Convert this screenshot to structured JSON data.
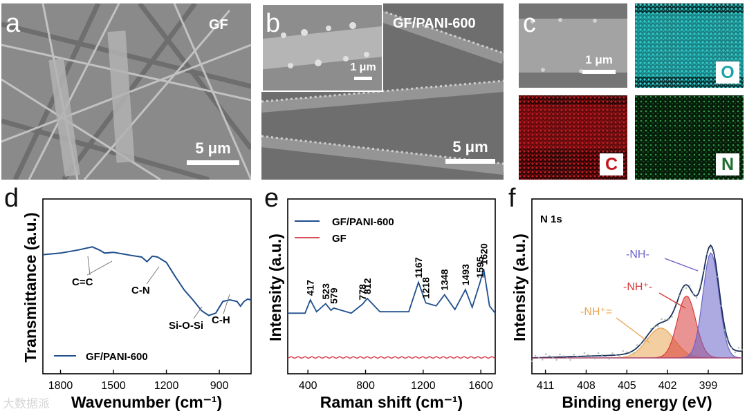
{
  "colors": {
    "pani": "#1f4e8c",
    "gf": "#d94a5a",
    "nh_peak": "#6a63c8",
    "nhp_peak": "#d93b3b",
    "nhpe_peak": "#e8a552",
    "map_o": "#29bfc2",
    "map_c": "#c3161c",
    "map_n": "#2f9a47"
  },
  "panels": {
    "a": {
      "label": "a",
      "title": "GF",
      "scale": "5 μm"
    },
    "b": {
      "label": "b",
      "title": "GF/PANI-600",
      "scale": "5 μm",
      "inset_scale": "1 μm"
    },
    "c": {
      "label": "c",
      "scale": "1 μm",
      "maps": {
        "o": "O",
        "c": "C",
        "n": "N"
      }
    }
  },
  "chart_data": [
    {
      "panel": "d",
      "type": "line",
      "xlabel": "Wavenumber (cm⁻¹)",
      "ylabel": "Transmittance (a.u.)",
      "xlim": [
        1900,
        720
      ],
      "x_reversed": true,
      "x_ticks": [
        1800,
        1500,
        1200,
        900
      ],
      "y_units": "arbitrary",
      "series": [
        {
          "name": "GF/PANI-600",
          "x": [
            1900,
            1800,
            1700,
            1620,
            1580,
            1550,
            1500,
            1450,
            1400,
            1340,
            1310,
            1280,
            1250,
            1200,
            1150,
            1100,
            1050,
            1000,
            960,
            920,
            880,
            840,
            800,
            780,
            760,
            740,
            720
          ],
          "y": [
            0.0,
            0.02,
            0.06,
            0.1,
            0.06,
            0.02,
            0.03,
            0.01,
            -0.01,
            -0.03,
            -0.09,
            -0.02,
            -0.03,
            -0.1,
            -0.28,
            -0.45,
            -0.58,
            -0.72,
            -0.78,
            -0.75,
            -0.6,
            -0.58,
            -0.6,
            -0.66,
            -0.6,
            -0.57,
            -0.58
          ]
        }
      ],
      "annotations": [
        "C=C",
        "C-N",
        "Si-O-Si",
        "C-H"
      ]
    },
    {
      "panel": "e",
      "type": "line",
      "xlabel": "Raman shift (cm⁻¹)",
      "ylabel": "Intensity (a.u.)",
      "xlim": [
        260,
        1700
      ],
      "x_ticks": [
        400,
        800,
        1200,
        1600
      ],
      "y_units": "arbitrary",
      "series": [
        {
          "name": "GF/PANI-600",
          "x": [
            260,
            380,
            417,
            460,
            523,
            560,
            579,
            700,
            778,
            812,
            900,
            1100,
            1167,
            1218,
            1290,
            1348,
            1420,
            1493,
            1540,
            1595,
            1620,
            1660,
            1700
          ],
          "y": [
            0.0,
            0.0,
            0.18,
            0.02,
            0.13,
            0.04,
            0.07,
            0.0,
            0.12,
            0.2,
            0.02,
            0.02,
            0.42,
            0.14,
            0.1,
            0.25,
            0.05,
            0.32,
            0.08,
            0.42,
            0.6,
            0.1,
            0.0
          ]
        },
        {
          "name": "GF",
          "x": [
            260,
            1700
          ],
          "y": [
            -0.6,
            -0.6
          ]
        }
      ],
      "peak_labels": [
        "417",
        "523",
        "579",
        "778",
        "812",
        "1167",
        "1218",
        "1348",
        "1493",
        "1595",
        "1620"
      ]
    },
    {
      "panel": "f",
      "type": "line",
      "title": "N 1s",
      "xlabel": "Binding energy (eV)",
      "ylabel": "Intensity (a.u.)",
      "xlim": [
        412,
        396.5
      ],
      "x_reversed": true,
      "x_ticks": [
        411,
        408,
        405,
        402,
        399
      ],
      "y_units": "arbitrary",
      "components": [
        {
          "name": "-NH-",
          "center_ev": 398.8,
          "height": 0.95,
          "fwhm_ev": 1.4
        },
        {
          "name": "-NH⁺-",
          "center_ev": 400.6,
          "height": 0.56,
          "fwhm_ev": 1.6
        },
        {
          "name": "-NH⁺=",
          "center_ev": 402.5,
          "height": 0.27,
          "fwhm_ev": 2.4
        }
      ]
    }
  ],
  "panel_labels": {
    "d": "d",
    "e": "e",
    "f": "f"
  },
  "watermark": "大数据派"
}
